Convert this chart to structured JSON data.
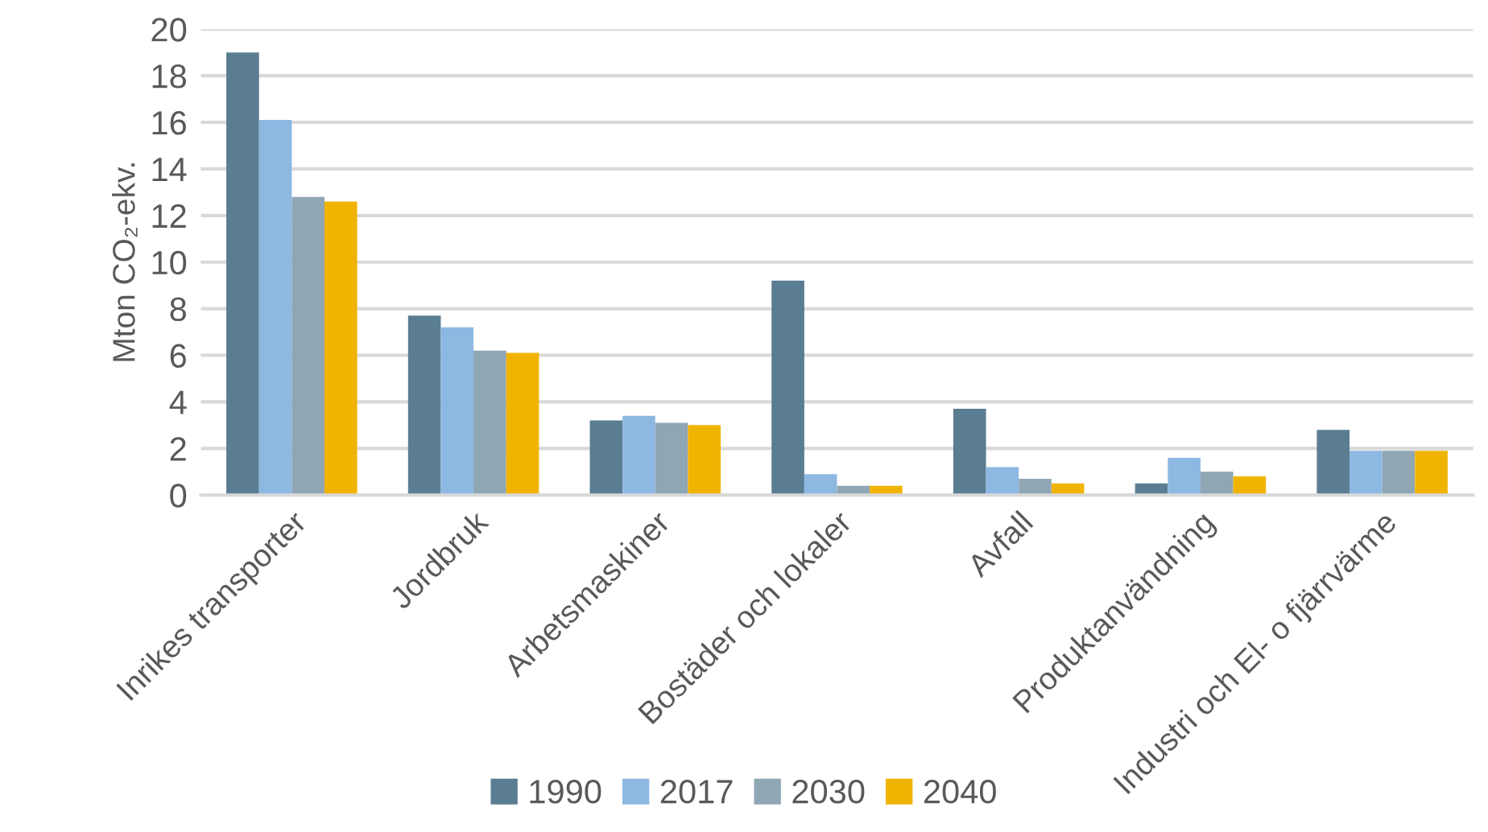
{
  "chart_data": {
    "type": "bar",
    "ylabel": "Mton CO₂-ekv.",
    "categories": [
      "Inrikes transporter",
      "Jordbruk",
      "Arbetsmaskiner",
      "Bostäder och lokaler",
      "Avfall",
      "Produktanvändning",
      "Industri och El- o fjärrvärme"
    ],
    "series": [
      {
        "name": "1990",
        "color": "#5a7d92",
        "values": [
          19.0,
          7.7,
          3.2,
          9.2,
          3.7,
          0.5,
          2.8
        ]
      },
      {
        "name": "2017",
        "color": "#8db8e2",
        "values": [
          16.1,
          7.2,
          3.4,
          0.9,
          1.2,
          1.6,
          1.9
        ]
      },
      {
        "name": "2030",
        "color": "#8fa6b5",
        "values": [
          12.8,
          6.2,
          3.1,
          0.4,
          0.7,
          1.0,
          1.9
        ]
      },
      {
        "name": "2040",
        "color": "#f0b400",
        "values": [
          12.6,
          6.1,
          3.0,
          0.4,
          0.5,
          0.8,
          1.9
        ]
      }
    ],
    "ylim": [
      0,
      20
    ],
    "yticks": [
      0,
      2,
      4,
      6,
      8,
      10,
      12,
      14,
      16,
      18,
      20
    ],
    "grid": "y",
    "legend": "bottom"
  }
}
